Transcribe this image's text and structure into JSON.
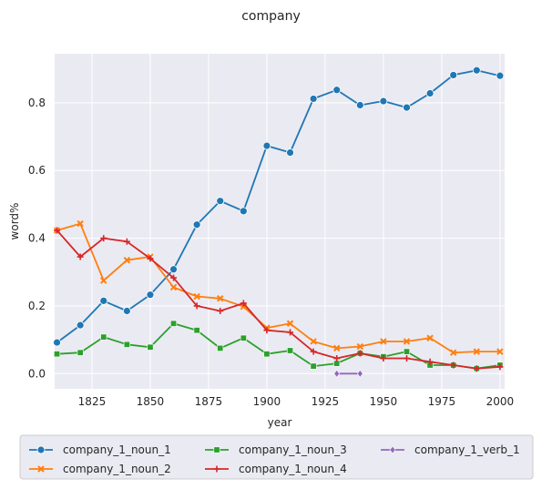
{
  "chart_data": {
    "type": "line",
    "title": "company",
    "xlabel": "year",
    "ylabel": "word%",
    "xlim": [
      1809,
      2002
    ],
    "ylim": [
      -0.045,
      0.945
    ],
    "xticks": [
      1825,
      1850,
      1875,
      1900,
      1925,
      1950,
      1975,
      2000
    ],
    "yticks": [
      0.0,
      0.2,
      0.4,
      0.6,
      0.8
    ],
    "ytick_labels": [
      "0.0",
      "0.2",
      "0.4",
      "0.6",
      "0.8"
    ],
    "grid": true,
    "legend_position": "bottom",
    "series": [
      {
        "name": "company_1_noun_1",
        "color": "#1f77b4",
        "marker": "circle",
        "x": [
          1810,
          1820,
          1830,
          1840,
          1850,
          1860,
          1870,
          1880,
          1890,
          1900,
          1910,
          1920,
          1930,
          1940,
          1950,
          1960,
          1970,
          1980,
          1990,
          2000
        ],
        "y": [
          0.092,
          0.143,
          0.215,
          0.185,
          0.233,
          0.308,
          0.44,
          0.51,
          0.48,
          0.673,
          0.653,
          0.812,
          0.838,
          0.793,
          0.805,
          0.786,
          0.828,
          0.882,
          0.896,
          0.88
        ]
      },
      {
        "name": "company_1_noun_2",
        "color": "#ff7f0e",
        "marker": "x",
        "x": [
          1810,
          1820,
          1830,
          1840,
          1850,
          1860,
          1870,
          1880,
          1890,
          1900,
          1910,
          1920,
          1930,
          1940,
          1950,
          1960,
          1970,
          1980,
          1990,
          2000
        ],
        "y": [
          0.423,
          0.443,
          0.275,
          0.335,
          0.345,
          0.255,
          0.228,
          0.222,
          0.198,
          0.135,
          0.148,
          0.095,
          0.075,
          0.08,
          0.095,
          0.095,
          0.105,
          0.062,
          0.065,
          0.065
        ]
      },
      {
        "name": "company_1_noun_3",
        "color": "#2ca02c",
        "marker": "square",
        "x": [
          1810,
          1820,
          1830,
          1840,
          1850,
          1860,
          1870,
          1880,
          1890,
          1900,
          1910,
          1920,
          1930,
          1940,
          1950,
          1960,
          1970,
          1980,
          1990,
          2000
        ],
        "y": [
          0.058,
          0.062,
          0.108,
          0.086,
          0.078,
          0.148,
          0.128,
          0.075,
          0.105,
          0.058,
          0.068,
          0.022,
          0.03,
          0.06,
          0.05,
          0.065,
          0.025,
          0.025,
          0.015,
          0.025
        ]
      },
      {
        "name": "company_1_noun_4",
        "color": "#d62728",
        "marker": "plus",
        "x": [
          1810,
          1820,
          1830,
          1840,
          1850,
          1860,
          1870,
          1880,
          1890,
          1900,
          1910,
          1920,
          1930,
          1940,
          1950,
          1960,
          1970,
          1980,
          1990,
          2000
        ],
        "y": [
          0.423,
          0.345,
          0.4,
          0.39,
          0.34,
          0.283,
          0.2,
          0.185,
          0.208,
          0.128,
          0.122,
          0.065,
          0.045,
          0.06,
          0.045,
          0.045,
          0.035,
          0.025,
          0.015,
          0.02
        ]
      },
      {
        "name": "company_1_verb_1",
        "color": "#9467bd",
        "marker": "diamond",
        "x": [
          1930,
          1940
        ],
        "y": [
          0.0,
          0.0
        ]
      }
    ]
  }
}
